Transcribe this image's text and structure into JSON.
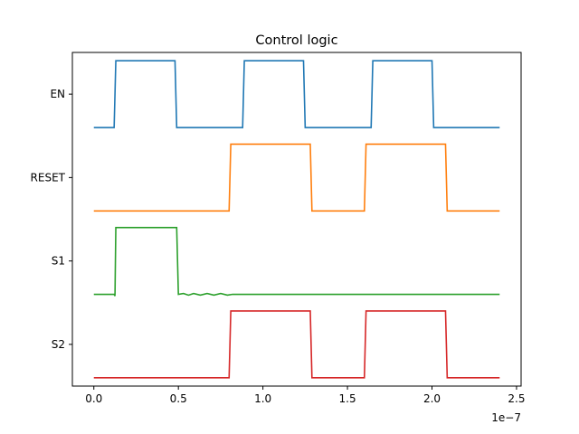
{
  "chart_data": {
    "type": "line",
    "title": "Control logic",
    "xlabel": "",
    "ylabel": "",
    "x_offset_label": "1e−7",
    "xlim": [
      -1.27e-08,
      2.527e-07
    ],
    "ylim": [
      -0.1,
      3.9
    ],
    "x_ticks": [
      {
        "value": 0,
        "label": "0.0"
      },
      {
        "value": 5e-08,
        "label": "0.5"
      },
      {
        "value": 1e-07,
        "label": "1.0"
      },
      {
        "value": 1.5e-07,
        "label": "1.5"
      },
      {
        "value": 2e-07,
        "label": "2.0"
      },
      {
        "value": 2.5e-07,
        "label": "2.5"
      }
    ],
    "y_ticks": [
      {
        "value": 3.4,
        "label": "EN"
      },
      {
        "value": 2.4,
        "label": "RESET"
      },
      {
        "value": 1.4,
        "label": "S1"
      },
      {
        "value": 0.4,
        "label": "S2"
      }
    ],
    "grid": false,
    "legend": "none",
    "series": [
      {
        "color": "#1f77b4",
        "points": [
          [
            0,
            3.0
          ],
          [
            1.2e-08,
            3.0
          ],
          [
            1.3e-08,
            3.8
          ],
          [
            4.8e-08,
            3.8
          ],
          [
            4.9e-08,
            3.0
          ],
          [
            8.8e-08,
            3.0
          ],
          [
            8.9e-08,
            3.8
          ],
          [
            1.24e-07,
            3.8
          ],
          [
            1.25e-07,
            3.0
          ],
          [
            1.64e-07,
            3.0
          ],
          [
            1.65e-07,
            3.8
          ],
          [
            2e-07,
            3.8
          ],
          [
            2.01e-07,
            3.0
          ],
          [
            2.4e-07,
            3.0
          ]
        ]
      },
      {
        "color": "#ff7f0e",
        "points": [
          [
            0,
            2.0
          ],
          [
            8e-08,
            2.0
          ],
          [
            8.1e-08,
            2.8
          ],
          [
            1.28e-07,
            2.8
          ],
          [
            1.29e-07,
            2.0
          ],
          [
            1.6e-07,
            2.0
          ],
          [
            1.61e-07,
            2.8
          ],
          [
            2.08e-07,
            2.8
          ],
          [
            2.09e-07,
            2.0
          ],
          [
            2.4e-07,
            2.0
          ]
        ]
      },
      {
        "color": "#2ca02c",
        "points": [
          [
            0,
            1.0
          ],
          [
            1.2e-08,
            1.0
          ],
          [
            1.25e-08,
            0.98
          ],
          [
            1.3e-08,
            1.8
          ],
          [
            4.9e-08,
            1.8
          ],
          [
            5e-08,
            1.0
          ],
          [
            5.3e-08,
            1.01
          ],
          [
            5.6e-08,
            0.99
          ],
          [
            5.9e-08,
            1.01
          ],
          [
            6.3e-08,
            0.99
          ],
          [
            6.7e-08,
            1.01
          ],
          [
            7.1e-08,
            0.99
          ],
          [
            7.5e-08,
            1.01
          ],
          [
            7.9e-08,
            0.99
          ],
          [
            8.2e-08,
            1.0
          ],
          [
            2.4e-07,
            1.0
          ]
        ]
      },
      {
        "color": "#d62728",
        "points": [
          [
            0,
            0.0
          ],
          [
            8e-08,
            0.0
          ],
          [
            8.1e-08,
            0.8
          ],
          [
            1.28e-07,
            0.8
          ],
          [
            1.29e-07,
            0.0
          ],
          [
            1.6e-07,
            0.0
          ],
          [
            1.61e-07,
            0.8
          ],
          [
            2.08e-07,
            0.8
          ],
          [
            2.09e-07,
            0.0
          ],
          [
            2.4e-07,
            0.0
          ]
        ]
      }
    ]
  }
}
